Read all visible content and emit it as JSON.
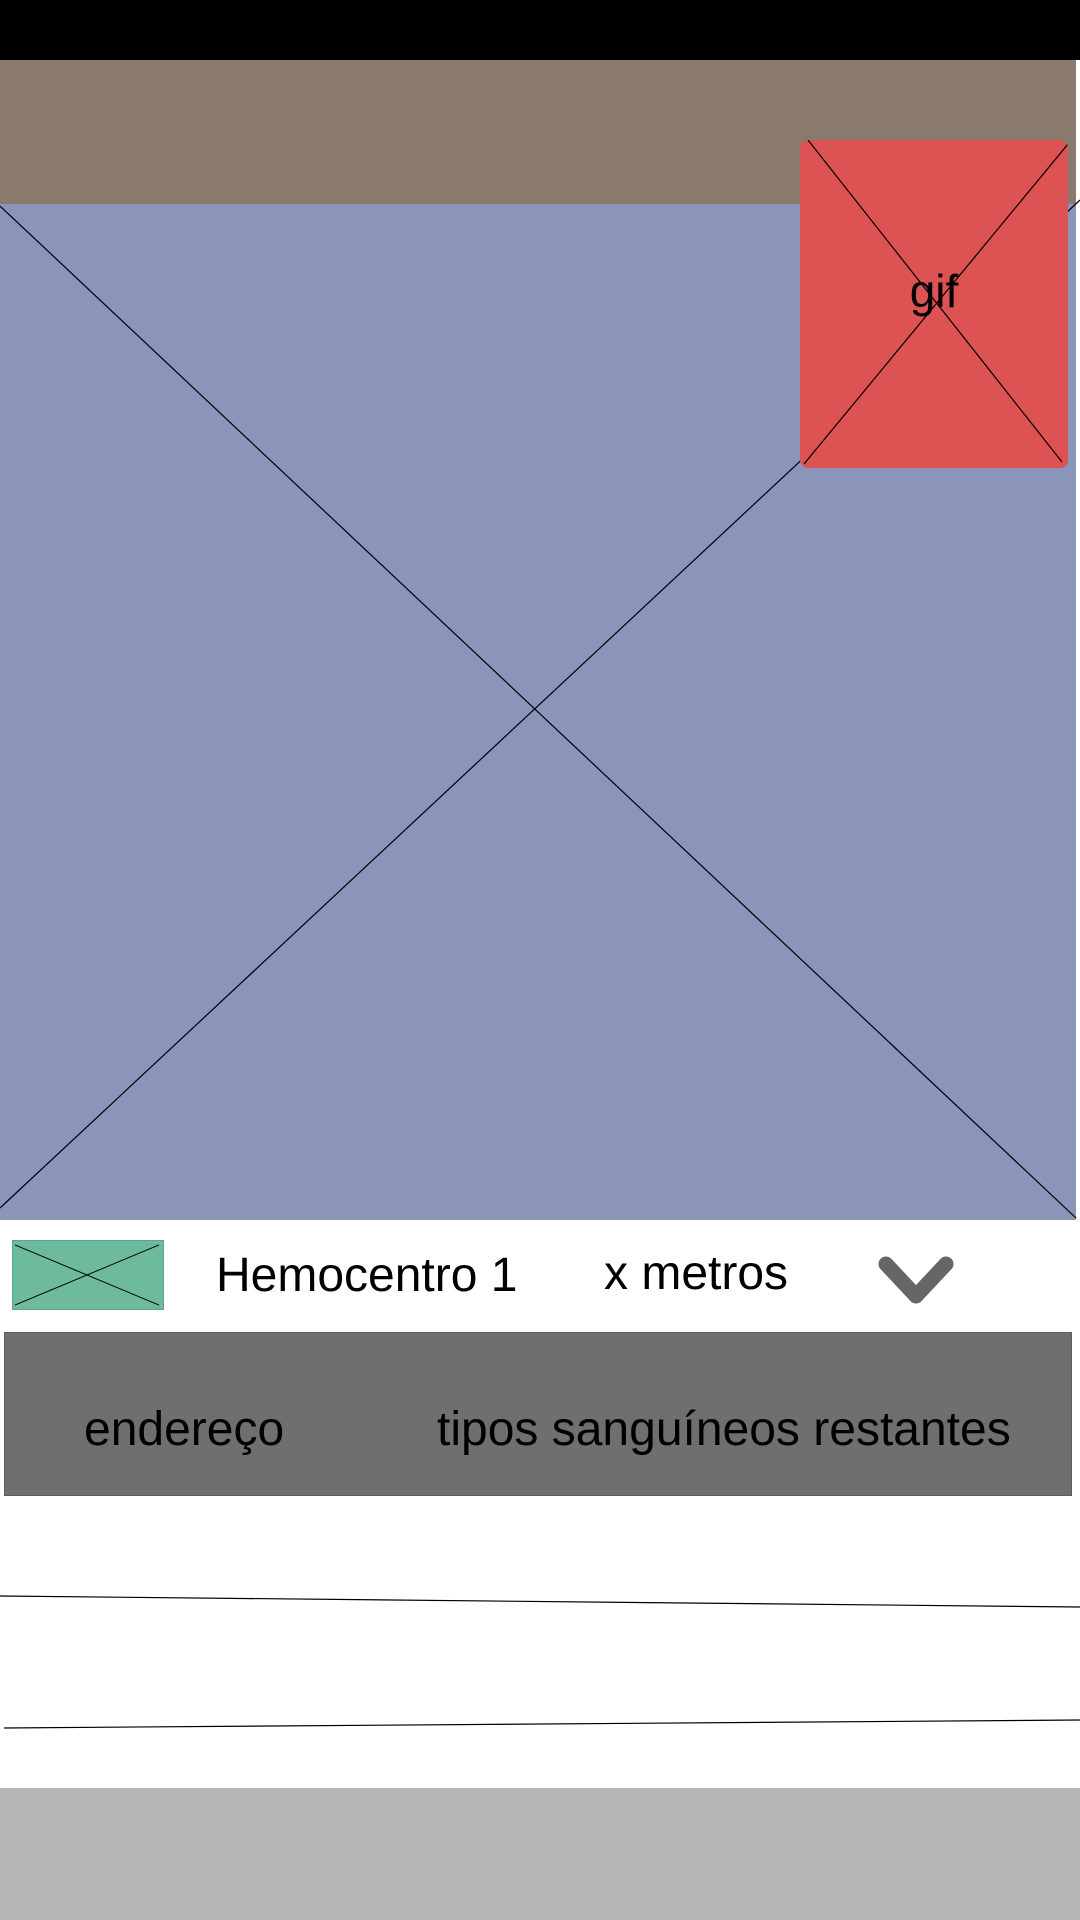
{
  "colors": {
    "status_bar": "#000000",
    "header": "#8a7a6d",
    "map_placeholder": "#8b94b9",
    "gif_placeholder": "#dd5252",
    "thumbnail": "#6dba9d",
    "detail_panel": "#6f6f6f",
    "bottom_bar": "#b7b7b7",
    "chevron": "#666666"
  },
  "gif": {
    "label": "gif"
  },
  "list_item": {
    "thumbnail_icon": "image-placeholder-icon",
    "title": "Hemocentro 1",
    "distance": "x metros",
    "expand_icon": "chevron-down-icon"
  },
  "detail": {
    "address_label": "endereço",
    "blood_types_label": "tipos sanguíneos restantes"
  }
}
